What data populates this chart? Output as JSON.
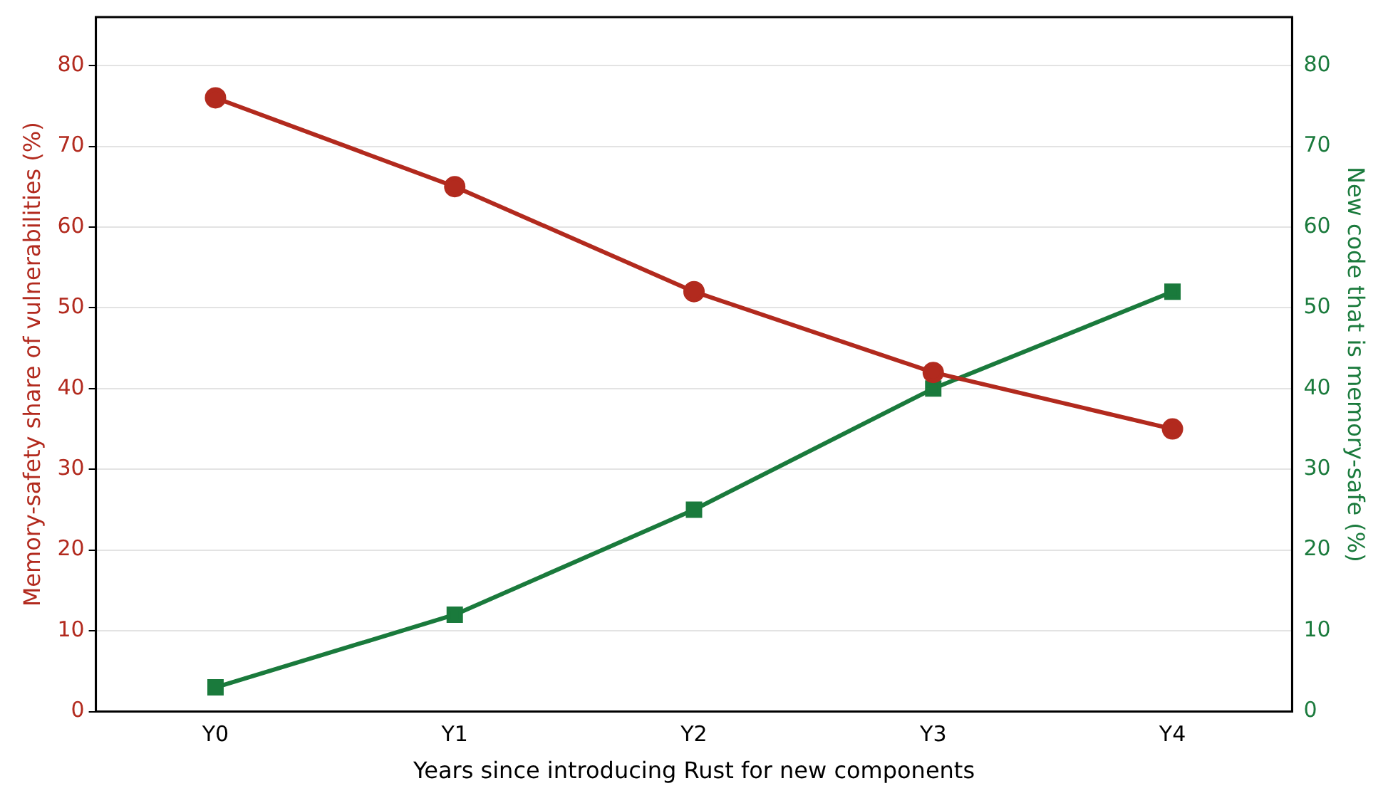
{
  "chart_data": {
    "type": "line",
    "xlabel": "Years since introducing Rust for new components",
    "ylabel": "Memory-safety share of vulnerabilities (%)",
    "y2label": "New code that is memory-safe (%)",
    "categories": [
      "Y0",
      "Y1",
      "Y2",
      "Y3",
      "Y4"
    ],
    "series": [
      {
        "color": "#b22a1e",
        "values": [
          76,
          65,
          52,
          42,
          35
        ],
        "marker": "circle"
      },
      {
        "color": "#1a7a3c",
        "values": [
          3,
          12,
          25,
          40,
          52
        ],
        "marker": "square",
        "axis": "y2"
      }
    ],
    "ylim": [
      0,
      86
    ],
    "yticks": [
      0,
      10,
      20,
      30,
      40,
      50,
      60,
      70,
      80
    ],
    "y2lim": [
      0,
      86
    ],
    "y2ticks": [
      0,
      10,
      20,
      30,
      40,
      50,
      60,
      70,
      80
    ],
    "grid": "y",
    "legend": false
  }
}
